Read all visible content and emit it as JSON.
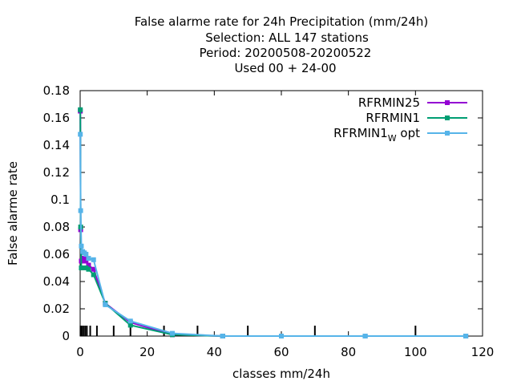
{
  "chart_data": {
    "type": "line",
    "title_lines": [
      "False alarme rate  for 24h Precipitation (mm/24h)",
      "Selection: ALL    147 stations",
      "Period: 20200508-20200522",
      "Used  00 + 24-00"
    ],
    "xlabel": "classes mm/24h",
    "ylabel": "False alarme rate",
    "xlim": [
      0,
      120
    ],
    "ylim": [
      0,
      0.18
    ],
    "x_ticks": [
      0,
      20,
      40,
      60,
      80,
      100,
      120
    ],
    "x_tick_labels": [
      "0",
      "20",
      "40",
      "60",
      "80",
      "100",
      "120"
    ],
    "y_ticks": [
      0,
      0.02,
      0.04,
      0.06,
      0.08,
      0.1,
      0.12,
      0.14,
      0.16,
      0.18
    ],
    "y_tick_labels": [
      "0",
      "0.02",
      "0.04",
      "0.06",
      "0.08",
      "0.1",
      "0.12",
      "0.14",
      "0.16",
      "0.18"
    ],
    "class_marks": [
      0.1,
      0.2,
      0.5,
      1,
      1.5,
      2,
      3,
      5,
      10,
      15,
      25,
      35,
      50,
      70,
      100
    ],
    "grid": false,
    "legend_position": "top-right",
    "legend": {
      "items": [
        {
          "label": "RFRMIN25",
          "label_main": "RFRMIN25",
          "label_sub": "",
          "label_tail": ""
        },
        {
          "label": "RFRMIN1",
          "label_main": "RFRMIN1",
          "label_sub": "",
          "label_tail": ""
        },
        {
          "label": "RFRMIN1_W opt",
          "label_main": "RFRMIN1",
          "label_sub": "W",
          "label_tail": " opt"
        }
      ]
    },
    "series": [
      {
        "name": "RFRMIN25",
        "color": "#9400d3",
        "x": [
          0.05,
          0.15,
          0.35,
          0.75,
          1.25,
          1.75,
          2.5,
          4,
          7.5,
          15,
          27.5,
          42.5,
          60,
          85,
          115
        ],
        "y": [
          0.165,
          0.078,
          0.055,
          0.057,
          0.057,
          0.055,
          0.052,
          0.049,
          0.024,
          0.01,
          0.001,
          0.0,
          0.0,
          0.0,
          0.0
        ]
      },
      {
        "name": "RFRMIN1",
        "color": "#009e73",
        "x": [
          0.05,
          0.15,
          0.35,
          0.75,
          1.25,
          1.75,
          2.5,
          4,
          7.5,
          15,
          27.5,
          42.5,
          60,
          85,
          115
        ],
        "y": [
          0.166,
          0.08,
          0.05,
          0.05,
          0.05,
          0.05,
          0.049,
          0.045,
          0.024,
          0.008,
          0.001,
          0.0,
          0.0,
          0.0,
          0.0
        ]
      },
      {
        "name": "RFRMIN1_W opt",
        "color": "#56b4e9",
        "x": [
          0.05,
          0.15,
          0.35,
          0.75,
          1.25,
          1.75,
          2.5,
          4,
          7.5,
          15,
          27.5,
          42.5,
          60,
          85,
          115
        ],
        "y": [
          0.148,
          0.092,
          0.066,
          0.062,
          0.061,
          0.06,
          0.057,
          0.056,
          0.023,
          0.011,
          0.002,
          0.0,
          0.0,
          0.0,
          0.0
        ]
      }
    ]
  }
}
